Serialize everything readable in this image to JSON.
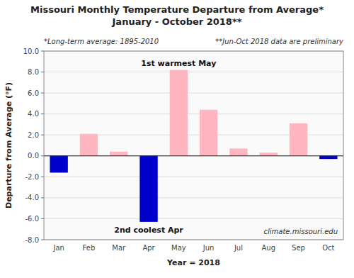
{
  "chart_data": {
    "type": "bar",
    "title": [
      "Missouri Monthly Temperature Departure from Average*",
      "January - October 2018**"
    ],
    "subtitle": [
      "*Long-term average: 1895-2010",
      "**Jun-Oct 2018 data are preliminary"
    ],
    "x_label": "Year = 2018",
    "y_label": "Departure from Average (°F)",
    "categories": [
      "Jan",
      "Feb",
      "Mar",
      "Apr",
      "May",
      "Jun",
      "Jul",
      "Aug",
      "Sep",
      "Oct"
    ],
    "values": [
      -1.6,
      2.1,
      0.4,
      -6.3,
      8.2,
      4.4,
      0.7,
      0.3,
      3.1,
      -0.3
    ],
    "colors": [
      "#0000CD",
      "#FFB6C1",
      "#FFB6C1",
      "#0000CD",
      "#FFB6C1",
      "#FFB6C1",
      "#FFB6C1",
      "#FFB6C1",
      "#FFB6C1",
      "#0000CD"
    ],
    "ylim": [
      -8.0,
      10.0
    ],
    "yticks": [
      {
        "value": -8.0,
        "label": "-8.0"
      },
      {
        "value": -6.0,
        "label": "-6.0"
      },
      {
        "value": -4.0,
        "label": "-4.0"
      },
      {
        "value": -2.0,
        "label": "-2.0"
      },
      {
        "value": 0.0,
        "label": "0.0"
      },
      {
        "value": 2.0,
        "label": "2.0"
      },
      {
        "value": 4.0,
        "label": "4.0"
      },
      {
        "value": 6.0,
        "label": "6.0"
      },
      {
        "value": 8.0,
        "label": "8.0"
      },
      {
        "value": 10.0,
        "label": "10.0"
      }
    ],
    "grid": true,
    "annotations": [
      {
        "text": "1st warmest May",
        "category": "May"
      },
      {
        "text": "2nd coolest Apr",
        "category": "Apr"
      },
      {
        "text": "climate.missouri.edu"
      }
    ]
  }
}
